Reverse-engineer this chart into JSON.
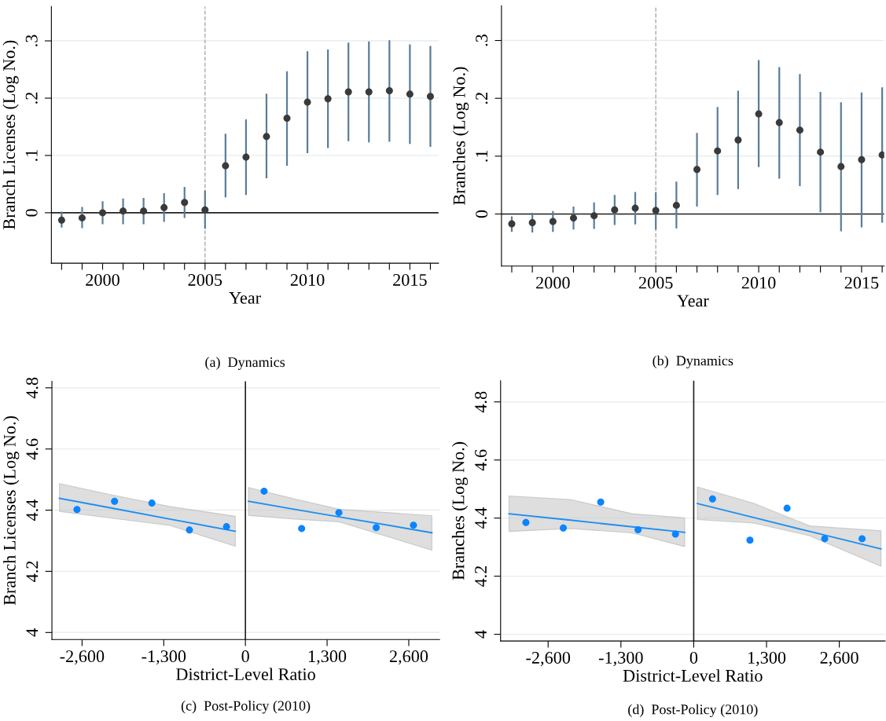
{
  "chart_data": [
    {
      "type": "scatter",
      "xlabel": "Year",
      "ylabel": "Branch Licenses (Log No.)",
      "annotations": [
        "(a)  Dynamics"
      ],
      "grid": "y",
      "xlim": [
        1997.5,
        2016.4
      ],
      "ylim": [
        -0.088,
        0.36
      ],
      "xticks": [
        {
          "value": 1998,
          "label": null
        },
        {
          "value": 1999,
          "label": null
        },
        2000,
        {
          "value": 2001,
          "label": null
        },
        {
          "value": 2002,
          "label": null
        },
        {
          "value": 2003,
          "label": null
        },
        {
          "value": 2004,
          "label": null
        },
        2005,
        {
          "value": 2006,
          "label": null
        },
        {
          "value": 2007,
          "label": null
        },
        {
          "value": 2008,
          "label": null
        },
        {
          "value": 2009,
          "label": null
        },
        2010,
        {
          "value": 2011,
          "label": null
        },
        {
          "value": 2012,
          "label": null
        },
        {
          "value": 2013,
          "label": null
        },
        {
          "value": 2014,
          "label": null
        },
        2015,
        {
          "value": 2016,
          "label": null
        }
      ],
      "yticks": [
        0,
        {
          "value": 0.1,
          "label": ".1"
        },
        {
          "value": 0.2,
          "label": ".2"
        },
        {
          "value": 0.3,
          "label": ".3"
        }
      ],
      "ref_lines": [
        {
          "axis": "y",
          "value": 0,
          "color": "#222222",
          "line_style": "solid"
        },
        {
          "axis": "x",
          "value": 2005,
          "color": "#aaaaaa",
          "line_style": "dashed"
        }
      ],
      "series": [
        {
          "color": "#3a3a3a",
          "marker": "circle",
          "x": [
            1998,
            1999,
            2000,
            2001,
            2002,
            2003,
            2004,
            2005,
            2006,
            2007,
            2008,
            2009,
            2010,
            2011,
            2012,
            2013,
            2014,
            2015,
            2016
          ],
          "values": [
            -0.013,
            -0.009,
            0.0,
            0.003,
            0.003,
            0.009,
            0.018,
            0.005,
            0.082,
            0.097,
            0.133,
            0.165,
            0.193,
            0.199,
            0.211,
            0.211,
            0.213,
            0.207,
            0.203
          ],
          "errors": [
            [
              -0.026,
              0.002
            ],
            [
              -0.027,
              0.01
            ],
            [
              -0.02,
              0.02
            ],
            [
              -0.02,
              0.025
            ],
            [
              -0.02,
              0.026
            ],
            [
              -0.016,
              0.034
            ],
            [
              -0.009,
              0.045
            ],
            [
              -0.028,
              0.039
            ],
            [
              0.027,
              0.138
            ],
            [
              0.031,
              0.163
            ],
            [
              0.06,
              0.208
            ],
            [
              0.082,
              0.247
            ],
            [
              0.104,
              0.282
            ],
            [
              0.113,
              0.285
            ],
            [
              0.125,
              0.297
            ],
            [
              0.123,
              0.299
            ],
            [
              0.124,
              0.301
            ],
            [
              0.12,
              0.294
            ],
            [
              0.115,
              0.291
            ]
          ]
        }
      ]
    },
    {
      "type": "scatter",
      "xlabel": "Year",
      "ylabel": "Branches (Log No.)",
      "annotations": [
        "(b)  Dynamics"
      ],
      "grid": "y",
      "xlim": [
        1997.5,
        2016.1
      ],
      "ylim": [
        -0.09,
        0.36
      ],
      "xticks": [
        {
          "value": 1998,
          "label": null
        },
        {
          "value": 1999,
          "label": null
        },
        2000,
        {
          "value": 2001,
          "label": null
        },
        {
          "value": 2002,
          "label": null
        },
        {
          "value": 2003,
          "label": null
        },
        {
          "value": 2004,
          "label": null
        },
        2005,
        {
          "value": 2006,
          "label": null
        },
        {
          "value": 2007,
          "label": null
        },
        {
          "value": 2008,
          "label": null
        },
        {
          "value": 2009,
          "label": null
        },
        2010,
        {
          "value": 2011,
          "label": null
        },
        {
          "value": 2012,
          "label": null
        },
        {
          "value": 2013,
          "label": null
        },
        {
          "value": 2014,
          "label": null
        },
        2015,
        {
          "value": 2016,
          "label": null
        }
      ],
      "yticks": [
        0,
        {
          "value": 0.1,
          "label": ".1"
        },
        {
          "value": 0.2,
          "label": ".2"
        },
        {
          "value": 0.3,
          "label": ".3"
        }
      ],
      "ref_lines": [
        {
          "axis": "y",
          "value": 0,
          "color": "#222222",
          "line_style": "solid"
        },
        {
          "axis": "x",
          "value": 2005,
          "color": "#aaaaaa",
          "line_style": "dashed"
        }
      ],
      "series": [
        {
          "color": "#3a3a3a",
          "marker": "circle",
          "x": [
            1998,
            1999,
            2000,
            2001,
            2002,
            2003,
            2004,
            2005,
            2006,
            2007,
            2008,
            2009,
            2010,
            2011,
            2012,
            2013,
            2014,
            2015,
            2016
          ],
          "values": [
            -0.017,
            -0.015,
            -0.013,
            -0.007,
            -0.003,
            0.007,
            0.01,
            0.006,
            0.015,
            0.077,
            0.109,
            0.128,
            0.173,
            0.158,
            0.145,
            0.107,
            0.082,
            0.094,
            0.102
          ],
          "errors": [
            [
              -0.031,
              -0.004
            ],
            [
              -0.032,
              0.002
            ],
            [
              -0.031,
              0.005
            ],
            [
              -0.027,
              0.013
            ],
            [
              -0.026,
              0.02
            ],
            [
              -0.019,
              0.033
            ],
            [
              -0.018,
              0.038
            ],
            [
              -0.027,
              0.038
            ],
            [
              -0.025,
              0.056
            ],
            [
              0.013,
              0.14
            ],
            [
              0.033,
              0.185
            ],
            [
              0.043,
              0.213
            ],
            [
              0.081,
              0.266
            ],
            [
              0.061,
              0.254
            ],
            [
              0.048,
              0.242
            ],
            [
              0.003,
              0.211
            ],
            [
              -0.03,
              0.193
            ],
            [
              -0.023,
              0.21
            ],
            [
              -0.015,
              0.219
            ]
          ]
        }
      ]
    },
    {
      "type": "scatter",
      "xlabel": "District-Level Ratio",
      "ylabel": "Branch Licenses (Log No.)",
      "annotations": [
        "(c)  Post-Policy (2010)"
      ],
      "grid": "y",
      "xlim": [
        -3080,
        3090
      ],
      "ylim": [
        3.977,
        4.821
      ],
      "xticks": [
        {
          "value": -2600,
          "label": "-2,600"
        },
        {
          "value": -1300,
          "label": "-1,300"
        },
        0,
        {
          "value": 1300,
          "label": "1,300"
        },
        {
          "value": 2600,
          "label": "2,600"
        }
      ],
      "yticks": [
        4,
        4.2,
        4.4,
        4.6,
        4.8
      ],
      "ref_lines": [
        {
          "axis": "x",
          "value": 0,
          "color": "#222222",
          "line_style": "solid"
        }
      ],
      "series": [
        {
          "type": "line",
          "color": "#1f8ff0",
          "x": [
            -2960,
            -2105,
            -1205,
            -162
          ],
          "values": [
            4.439,
            4.406,
            4.371,
            4.331
          ],
          "lower": [
            4.396,
            4.373,
            4.35,
            4.282
          ],
          "upper": [
            4.487,
            4.449,
            4.412,
            4.38
          ]
        },
        {
          "type": "line",
          "color": "#1f8ff0",
          "x": [
            49,
            773,
            1493,
            2968
          ],
          "values": [
            4.429,
            4.403,
            4.378,
            4.326
          ],
          "lower": [
            4.383,
            4.371,
            4.362,
            4.269
          ],
          "upper": [
            4.474,
            4.437,
            4.403,
            4.382
          ]
        },
        {
          "type": "scatter",
          "marker": "circle",
          "color": "#0a84ff",
          "x": [
            -2681,
            -2083,
            -1489,
            -891,
            -301,
            297,
            895,
            1488,
            2082,
            2675
          ],
          "values": [
            4.402,
            4.429,
            4.423,
            4.335,
            4.346,
            4.462,
            4.34,
            4.392,
            4.343,
            4.351
          ]
        }
      ]
    },
    {
      "type": "scatter",
      "xlabel": "District-Level Ratio",
      "ylabel": "Branches (Log No.)",
      "annotations": [
        "(d)  Post-Policy (2010)"
      ],
      "grid": "y",
      "xlim": [
        -3449,
        3418
      ],
      "ylim": [
        3.977,
        4.873
      ],
      "xticks": [
        {
          "value": -2600,
          "label": "-2,600"
        },
        {
          "value": -1300,
          "label": "-1,300"
        },
        0,
        {
          "value": 1300,
          "label": "1,300"
        },
        {
          "value": 2600,
          "label": "2,600"
        }
      ],
      "yticks": [
        4,
        4.2,
        4.4,
        4.6,
        4.8
      ],
      "ref_lines": [
        {
          "axis": "x",
          "value": 0,
          "color": "#222222",
          "line_style": "solid"
        }
      ],
      "series": [
        {
          "type": "line",
          "color": "#1f8ff0",
          "x": [
            -3298,
            -2200,
            -1100,
            -161
          ],
          "values": [
            4.415,
            4.393,
            4.37,
            4.351
          ],
          "lower": [
            4.354,
            4.364,
            4.349,
            4.302
          ],
          "upper": [
            4.476,
            4.464,
            4.415,
            4.401
          ]
        },
        {
          "type": "line",
          "color": "#1f8ff0",
          "x": [
            65,
            1069,
            2073,
            3344
          ],
          "values": [
            4.45,
            4.402,
            4.354,
            4.294
          ],
          "lower": [
            4.395,
            4.383,
            4.339,
            4.234
          ],
          "upper": [
            4.507,
            4.451,
            4.373,
            4.356
          ]
        },
        {
          "type": "scatter",
          "marker": "circle",
          "color": "#0a84ff",
          "x": [
            -2997,
            -2329,
            -1661,
            -994,
            -326,
            336,
            1004,
            1667,
            2339,
            3007
          ],
          "values": [
            4.385,
            4.366,
            4.455,
            4.36,
            4.345,
            4.466,
            4.324,
            4.434,
            4.329,
            4.329
          ]
        }
      ]
    }
  ]
}
